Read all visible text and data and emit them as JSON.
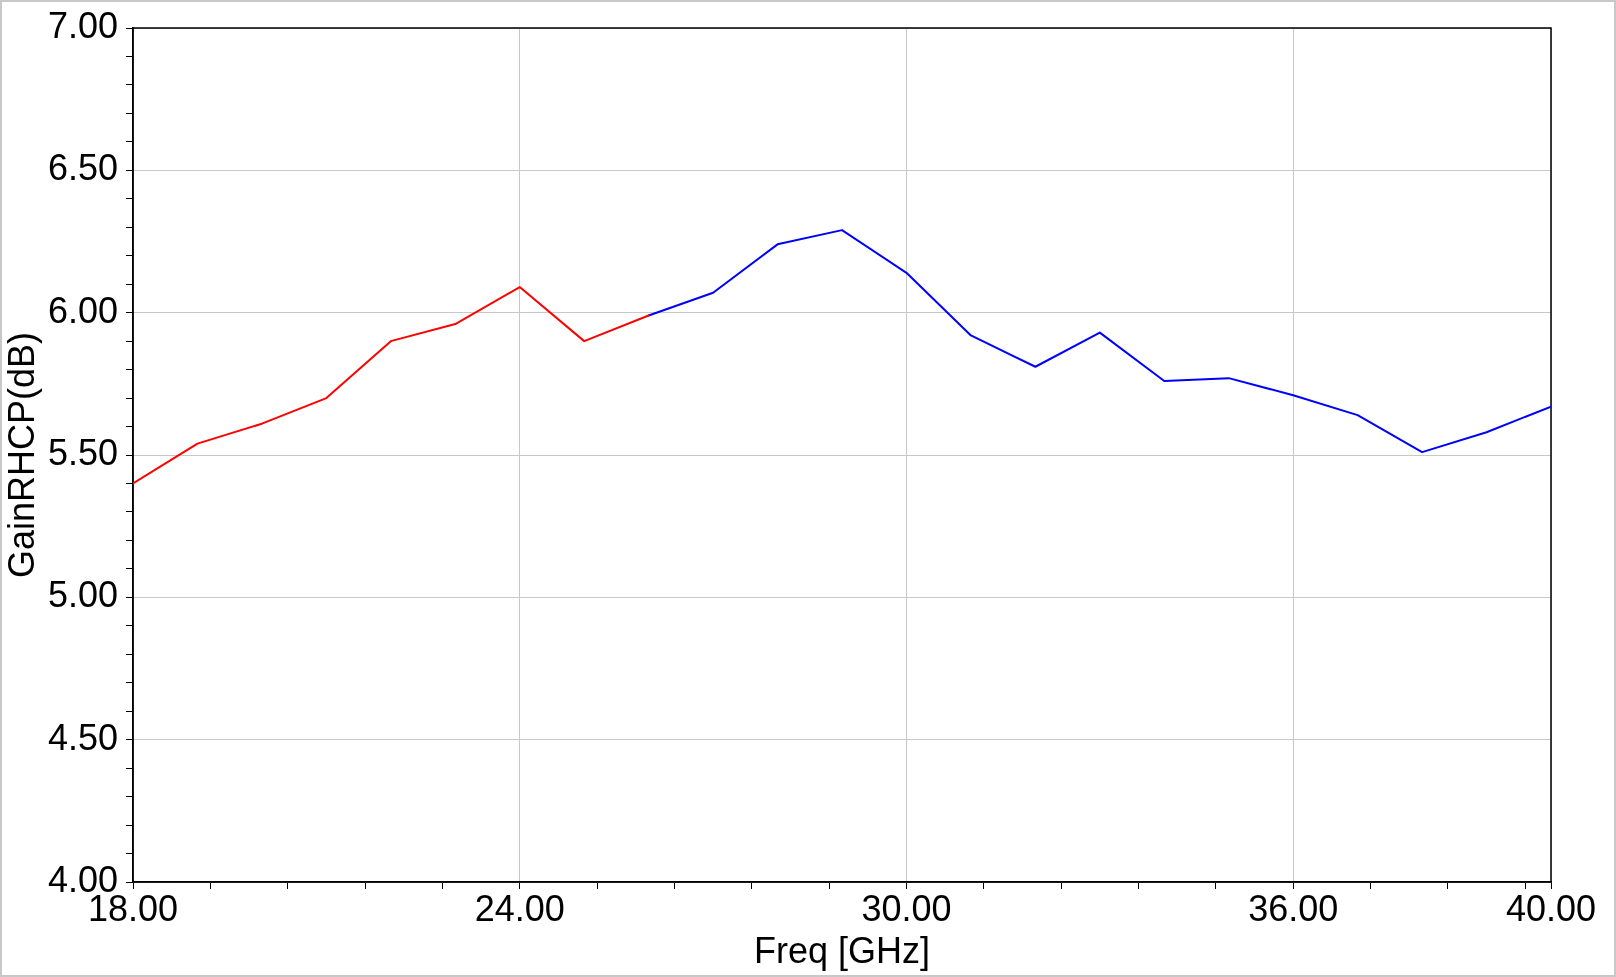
{
  "chart_data": {
    "type": "line",
    "xlabel": "Freq [GHz]",
    "ylabel": "GainRHCP(dB)",
    "series": [
      {
        "color": "#ff0000",
        "x": [
          18,
          19,
          20,
          21,
          22,
          23,
          24,
          25,
          26
        ],
        "values": [
          5.4,
          5.54,
          5.61,
          5.7,
          5.9,
          5.96,
          6.09,
          5.9,
          5.99
        ]
      },
      {
        "color": "#0000ff",
        "x": [
          26,
          27,
          28,
          29,
          30,
          31,
          32,
          33,
          34,
          35,
          36,
          37,
          38,
          39,
          40
        ],
        "values": [
          5.99,
          6.07,
          6.24,
          6.29,
          6.14,
          5.92,
          5.81,
          5.93,
          5.76,
          5.77,
          5.71,
          5.64,
          5.51,
          5.58,
          5.67
        ]
      }
    ],
    "xlim": [
      18,
      40
    ],
    "ylim": [
      4,
      7
    ],
    "xticks": [
      {
        "value": 18,
        "label": "18.00"
      },
      {
        "value": 19.2,
        "label": null
      },
      {
        "value": 20.4,
        "label": null
      },
      {
        "value": 21.6,
        "label": null
      },
      {
        "value": 22.8,
        "label": null
      },
      {
        "value": 24,
        "label": "24.00"
      },
      {
        "value": 25.2,
        "label": null
      },
      {
        "value": 26.4,
        "label": null
      },
      {
        "value": 27.6,
        "label": null
      },
      {
        "value": 28.8,
        "label": null
      },
      {
        "value": 30,
        "label": "30.00"
      },
      {
        "value": 31.2,
        "label": null
      },
      {
        "value": 32.4,
        "label": null
      },
      {
        "value": 33.6,
        "label": null
      },
      {
        "value": 34.8,
        "label": null
      },
      {
        "value": 36,
        "label": "36.00"
      },
      {
        "value": 37.2,
        "label": null
      },
      {
        "value": 38.4,
        "label": null
      },
      {
        "value": 39.6,
        "label": null
      },
      {
        "value": 40,
        "label": "40.00"
      }
    ],
    "yticks": [
      {
        "value": 4,
        "label": "4.00"
      },
      {
        "value": 4.1,
        "label": null
      },
      {
        "value": 4.2,
        "label": null
      },
      {
        "value": 4.3,
        "label": null
      },
      {
        "value": 4.4,
        "label": null
      },
      {
        "value": 4.5,
        "label": "4.50"
      },
      {
        "value": 4.6,
        "label": null
      },
      {
        "value": 4.7,
        "label": null
      },
      {
        "value": 4.8,
        "label": null
      },
      {
        "value": 4.9,
        "label": null
      },
      {
        "value": 5,
        "label": "5.00"
      },
      {
        "value": 5.1,
        "label": null
      },
      {
        "value": 5.2,
        "label": null
      },
      {
        "value": 5.3,
        "label": null
      },
      {
        "value": 5.4,
        "label": null
      },
      {
        "value": 5.5,
        "label": "5.50"
      },
      {
        "value": 5.6,
        "label": null
      },
      {
        "value": 5.7,
        "label": null
      },
      {
        "value": 5.8,
        "label": null
      },
      {
        "value": 5.9,
        "label": null
      },
      {
        "value": 6,
        "label": "6.00"
      },
      {
        "value": 6.1,
        "label": null
      },
      {
        "value": 6.2,
        "label": null
      },
      {
        "value": 6.3,
        "label": null
      },
      {
        "value": 6.4,
        "label": null
      },
      {
        "value": 6.5,
        "label": "6.50"
      },
      {
        "value": 6.6,
        "label": null
      },
      {
        "value": 6.7,
        "label": null
      },
      {
        "value": 6.8,
        "label": null
      },
      {
        "value": 6.9,
        "label": null
      },
      {
        "value": 7,
        "label": "7.00"
      }
    ],
    "grid": true
  }
}
